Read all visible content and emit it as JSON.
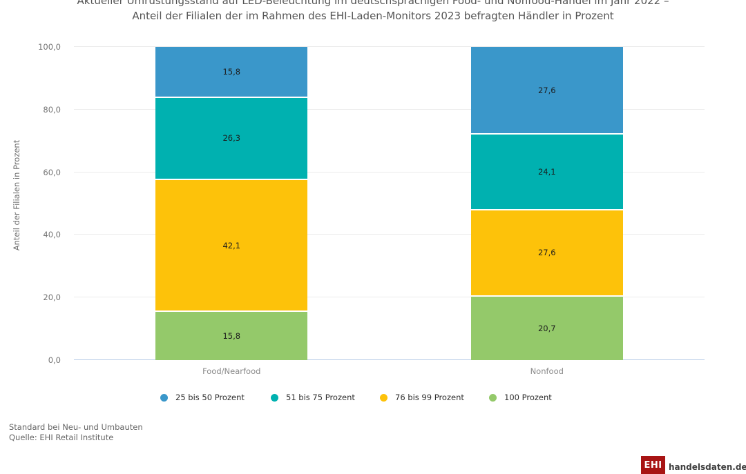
{
  "title": {
    "line1": "Aktueller Umrüstungsstand auf LED-Beleuchtung im deutschsprachigen Food- und Nonfood-Handel im Jahr 2022 –",
    "line2": "Anteil der Filialen der im Rahmen des EHI-Laden-Monitors 2023 befragten Händler in Prozent"
  },
  "footer": {
    "note": "Standard bei Neu- und Umbauten",
    "source": "Quelle: EHI Retail Institute"
  },
  "logo": {
    "badge": "EHI",
    "site": "handelsdaten.de",
    "badge_color": "#a81414"
  },
  "chart_data": {
    "type": "bar",
    "stacked": true,
    "stack_order": "top-to-bottom",
    "title": "Aktueller Umrüstungsstand auf LED-Beleuchtung im deutschsprachigen Food- und Nonfood-Handel im Jahr 2022 – Anteil der Filialen der im Rahmen des EHI-Laden-Monitors 2023 befragten Händler in Prozent",
    "categories": [
      "Food/Nearfood",
      "Nonfood"
    ],
    "series": [
      {
        "name": "25 bis 50 Prozent",
        "color": "#3a97ca",
        "values": [
          15.8,
          27.6
        ],
        "labels": [
          "15,8",
          "27,6"
        ]
      },
      {
        "name": "51 bis 75 Prozent",
        "color": "#00b1b0",
        "values": [
          26.3,
          24.1
        ],
        "labels": [
          "26,3",
          "24,1"
        ]
      },
      {
        "name": "76 bis 99 Prozent",
        "color": "#fdc20a",
        "values": [
          42.1,
          27.6
        ],
        "labels": [
          "42,1",
          "27,6"
        ]
      },
      {
        "name": "100 Prozent",
        "color": "#94c96a",
        "values": [
          15.8,
          20.7
        ],
        "labels": [
          "15,8",
          "20,7"
        ]
      }
    ],
    "xlabel": "",
    "ylabel": "Anteil der Filialen in Prozent",
    "ylim": [
      0,
      100
    ],
    "yticks": [
      0,
      20,
      40,
      60,
      80,
      100
    ],
    "ytick_labels": [
      "0,0",
      "20,0",
      "40,0",
      "60,0",
      "80,0",
      "100,0"
    ],
    "decimal_separator": ",",
    "grid": true,
    "gridline_color": "#ebebeb",
    "axis_line_color": "#b3c9e6",
    "legend_position": "bottom",
    "value_labels": true
  }
}
